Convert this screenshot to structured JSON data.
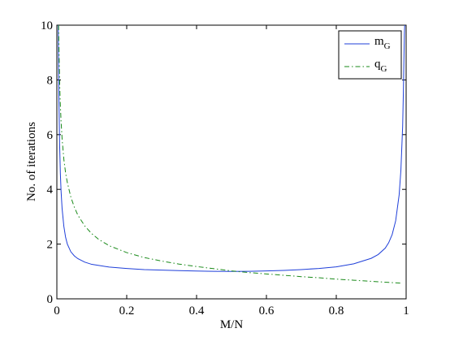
{
  "chart_data": {
    "type": "line",
    "title": "",
    "xlabel": "M/N",
    "ylabel": "No. of iterations",
    "xlim": [
      0,
      1
    ],
    "ylim": [
      0,
      10
    ],
    "xticks": [
      "0",
      "0.2",
      "0.4",
      "0.6",
      "0.8",
      "1"
    ],
    "yticks": [
      "0",
      "2",
      "4",
      "6",
      "8",
      "10"
    ],
    "grid": false,
    "legend_position": "top-right",
    "series": [
      {
        "name": "m_G",
        "legend_main": "m",
        "legend_sub": "G",
        "color": "#1f3fd9",
        "style": "solid",
        "x": [
          0.004,
          0.005,
          0.006,
          0.008,
          0.01,
          0.012,
          0.015,
          0.02,
          0.025,
          0.03,
          0.04,
          0.05,
          0.06,
          0.08,
          0.1,
          0.15,
          0.2,
          0.25,
          0.3,
          0.35,
          0.4,
          0.45,
          0.5,
          0.55,
          0.6,
          0.65,
          0.7,
          0.75,
          0.8,
          0.85,
          0.9,
          0.92,
          0.94,
          0.95,
          0.96,
          0.97,
          0.98,
          0.985,
          0.99,
          0.992,
          0.994,
          0.995,
          0.996
        ],
        "y": [
          10.0,
          8.4,
          7.2,
          5.6,
          4.6,
          3.95,
          3.3,
          2.65,
          2.25,
          2.0,
          1.72,
          1.57,
          1.47,
          1.34,
          1.26,
          1.16,
          1.11,
          1.07,
          1.05,
          1.03,
          1.015,
          1.005,
          1.0,
          1.005,
          1.02,
          1.04,
          1.07,
          1.11,
          1.17,
          1.28,
          1.48,
          1.62,
          1.85,
          2.05,
          2.35,
          2.85,
          3.8,
          4.7,
          6.3,
          7.5,
          9.0,
          9.7,
          10.0
        ]
      },
      {
        "name": "q_G",
        "legend_main": "q",
        "legend_sub": "G",
        "color": "#1a8a1a",
        "style": "dashdot",
        "x": [
          0.005,
          0.0065,
          0.008,
          0.01,
          0.012,
          0.015,
          0.02,
          0.025,
          0.03,
          0.04,
          0.05,
          0.06,
          0.08,
          0.1,
          0.12,
          0.15,
          0.2,
          0.25,
          0.3,
          0.35,
          0.4,
          0.45,
          0.5,
          0.55,
          0.6,
          0.65,
          0.7,
          0.75,
          0.8,
          0.85,
          0.9,
          0.95,
          0.99
        ],
        "y": [
          10.0,
          8.8,
          7.9,
          7.1,
          6.5,
          5.85,
          5.1,
          4.6,
          4.25,
          3.72,
          3.35,
          3.06,
          2.66,
          2.38,
          2.17,
          1.94,
          1.69,
          1.51,
          1.38,
          1.27,
          1.18,
          1.1,
          1.02,
          0.96,
          0.91,
          0.86,
          0.81,
          0.77,
          0.72,
          0.68,
          0.64,
          0.6,
          0.57
        ]
      }
    ]
  }
}
